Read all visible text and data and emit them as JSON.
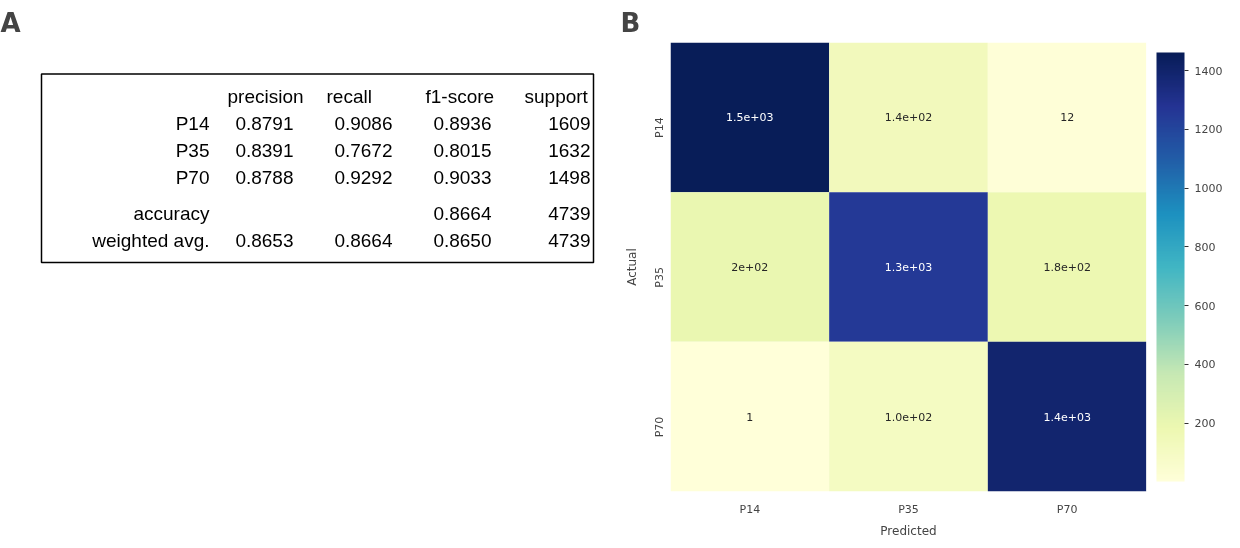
{
  "chart_data": [
    {
      "type": "other",
      "title": "A",
      "categories": [
        "precision",
        "recall",
        "f1-score",
        "support"
      ],
      "y_categories": [
        "P14",
        "P35",
        "P70",
        "accuracy",
        "weighted avg."
      ],
      "cell_labels": [
        [
          "0.8791",
          "0.9086",
          "0.8936",
          "1609"
        ],
        [
          "0.8391",
          "0.7672",
          "0.8015",
          "1632"
        ],
        [
          "0.8788",
          "0.9292",
          "0.9033",
          "1498"
        ],
        [
          null,
          null,
          "0.8664",
          "4739"
        ],
        [
          "0.8653",
          "0.8664",
          "0.8650",
          "4739"
        ]
      ]
    },
    {
      "type": "heatmap",
      "title": "B",
      "xlabel": "Predicted",
      "ylabel": "Actual",
      "categories": [
        "P14",
        "P35",
        "P70"
      ],
      "y_categories": [
        "P14",
        "P35",
        "P70"
      ],
      "cells": [
        [
          1462,
          135,
          12
        ],
        [
          200,
          1252,
          180
        ],
        [
          1,
          105,
          1392
        ]
      ],
      "cell_labels": [
        [
          "1.5e+03",
          "1.4e+02",
          "12"
        ],
        [
          "2e+02",
          "1.3e+03",
          "1.8e+02"
        ],
        [
          "1",
          "1.0e+02",
          "1.4e+03"
        ]
      ],
      "clim": [
        1,
        1462
      ],
      "cticks": [
        200,
        400,
        600,
        800,
        1000,
        1200,
        1400
      ]
    }
  ]
}
